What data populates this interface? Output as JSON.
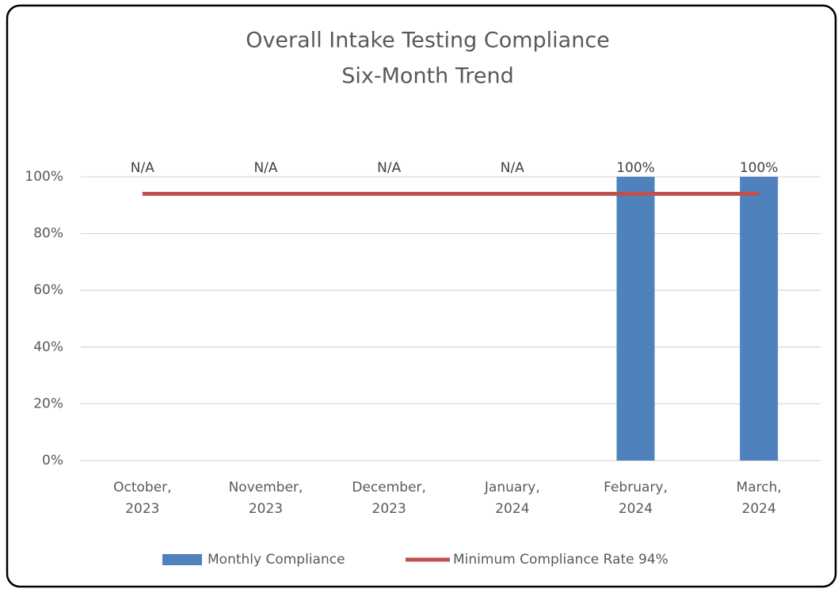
{
  "chart_data": {
    "type": "bar",
    "title": "Overall Intake Testing Compliance",
    "subtitle": "Six-Month Trend",
    "categories": [
      [
        "October,",
        "2023"
      ],
      [
        "November,",
        "2023"
      ],
      [
        "December,",
        "2023"
      ],
      [
        "January,",
        "2024"
      ],
      [
        "February,",
        "2024"
      ],
      [
        "March,",
        "2024"
      ]
    ],
    "series": [
      {
        "name": "Monthly Compliance",
        "type": "bar",
        "color": "#4f81bd",
        "values": [
          null,
          null,
          null,
          null,
          100,
          100
        ],
        "value_labels": [
          "N/A",
          "N/A",
          "N/A",
          "N/A",
          "100%",
          "100%"
        ]
      },
      {
        "name": "Minimum Compliance Rate 94%",
        "type": "line",
        "color": "#c0504d",
        "values": [
          94,
          94,
          94,
          94,
          94,
          94
        ]
      }
    ],
    "ylim": [
      0,
      100
    ],
    "yticks": [
      {
        "value": 0,
        "label": "0%"
      },
      {
        "value": 20,
        "label": "20%"
      },
      {
        "value": 40,
        "label": "40%"
      },
      {
        "value": 60,
        "label": "60%"
      },
      {
        "value": 80,
        "label": "80%"
      },
      {
        "value": 100,
        "label": "100%"
      }
    ],
    "grid": true,
    "legend": "bottom"
  }
}
